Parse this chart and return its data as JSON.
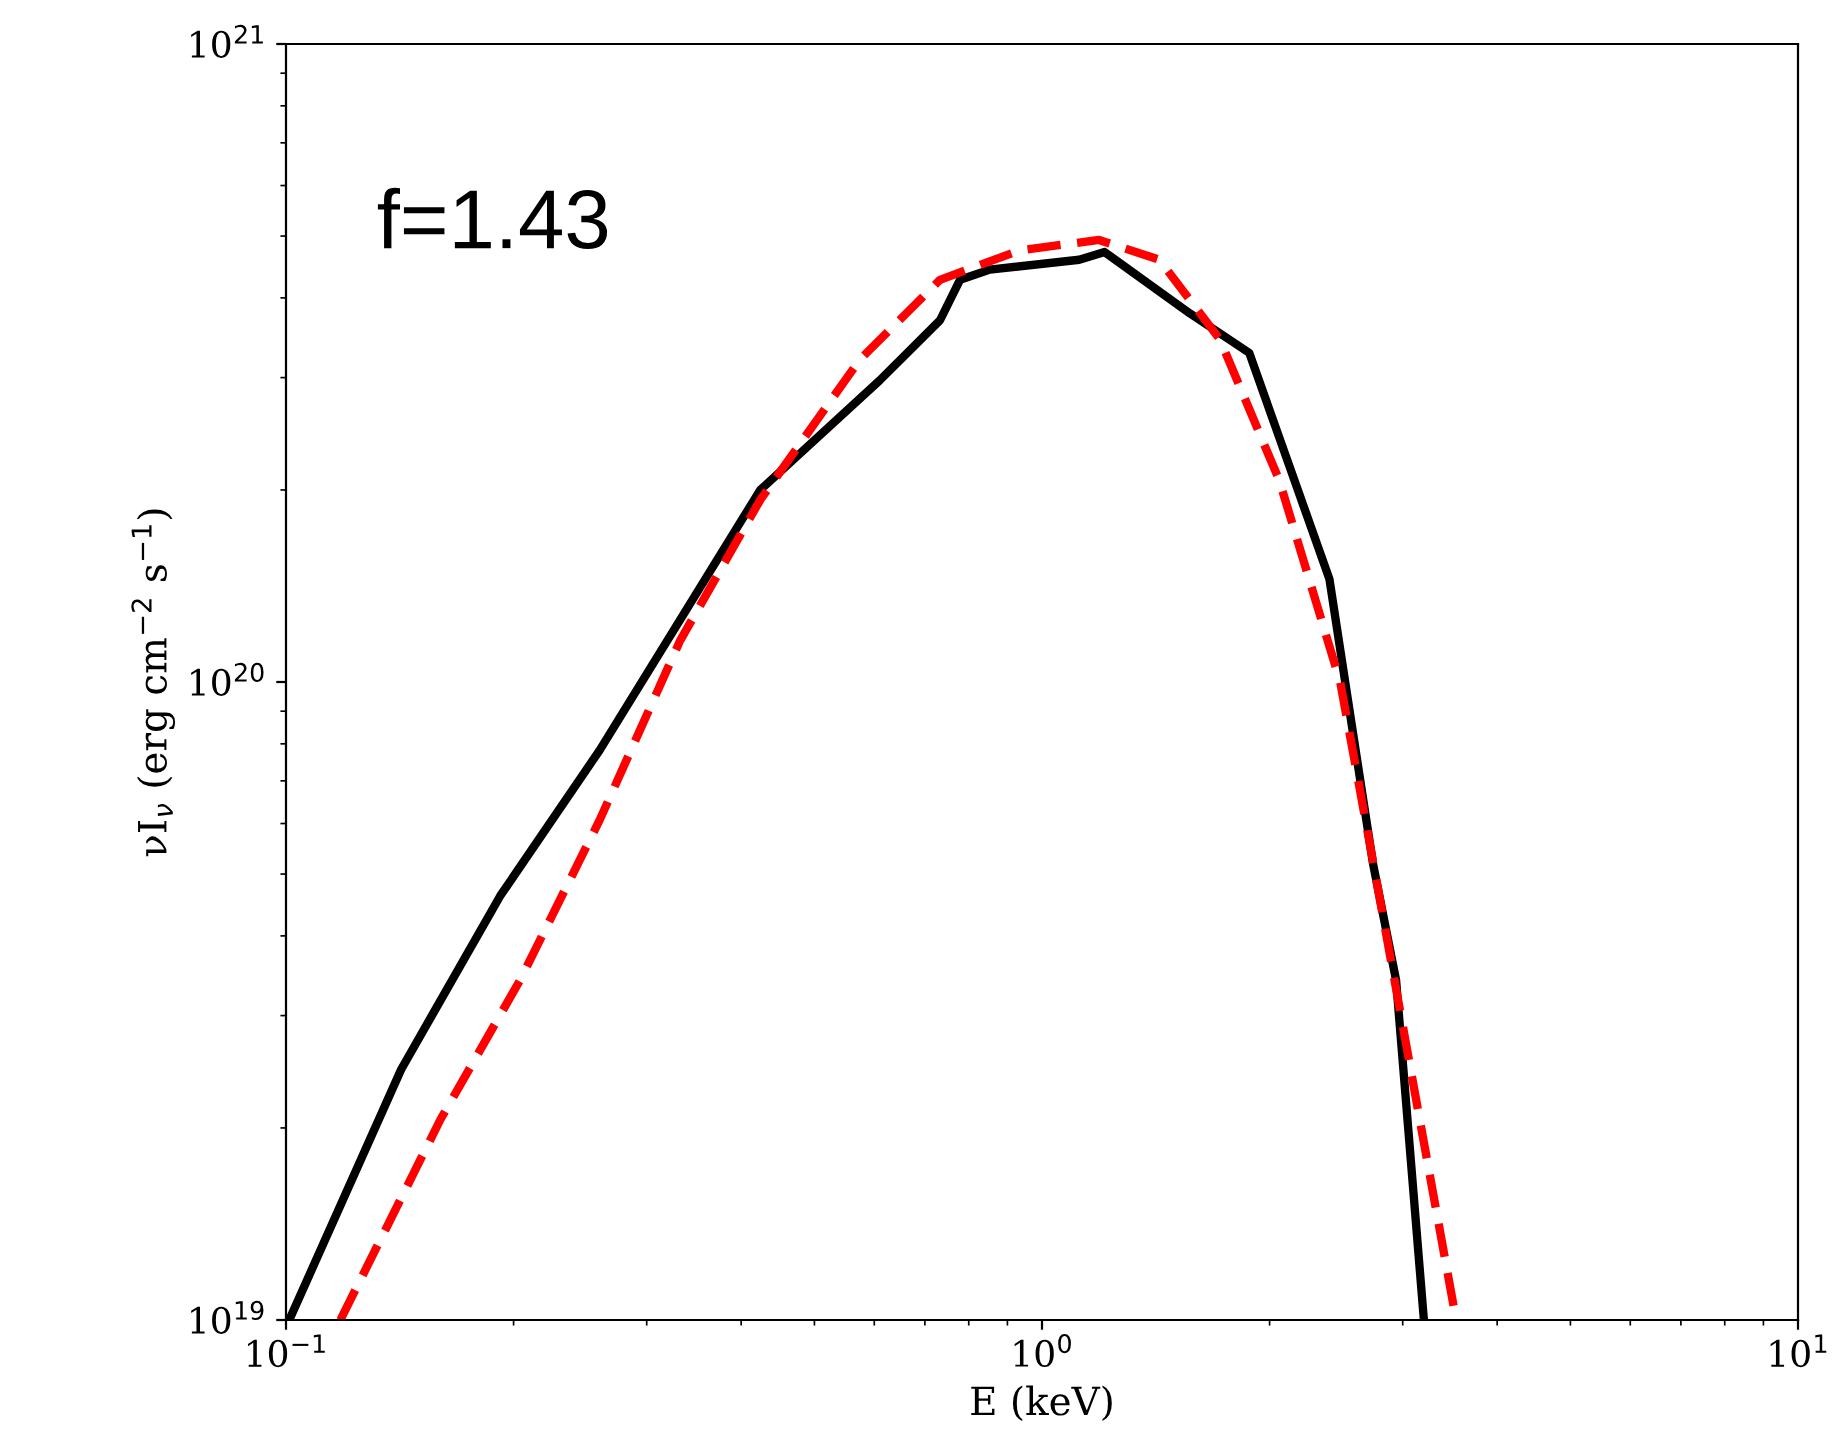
{
  "chart_data": {
    "type": "line",
    "xlabel": "E (keV)",
    "ylabel": "νI$_{ν}$ (erg cm$^{−2}$ s$^{−1}$)",
    "log": "xy",
    "grid": false,
    "legend": false,
    "xlim": [
      0.1,
      10
    ],
    "ylim": [
      1e+19,
      1e+21
    ],
    "xticks": [
      {
        "value": 0.1,
        "label": "10$^{−1}$"
      },
      {
        "value": 1,
        "label": "10$^{0}$"
      },
      {
        "value": 10,
        "label": "10$^{1}$"
      }
    ],
    "yticks": [
      {
        "value": 1e+19,
        "label": "10$^{19}$"
      },
      {
        "value": 1e+20,
        "label": "10$^{20}$"
      },
      {
        "value": 1e+21,
        "label": "10$^{21}$"
      }
    ],
    "annotations": [
      "f=1.43"
    ],
    "series": [
      {
        "color": "#000000",
        "line_style": "solid",
        "x": [
          0.101,
          0.142,
          0.192,
          0.26,
          0.424,
          0.61,
          0.733,
          0.779,
          0.853,
          1.12,
          1.21,
          1.57,
          1.88,
          2.4,
          2.74,
          2.94,
          3.2
        ],
        "values": [
          1e+19,
          2.47e+19,
          4.62e+19,
          7.82e+19,
          2e+20,
          2.97e+20,
          3.69e+20,
          4.27e+20,
          4.43e+20,
          4.59e+20,
          4.72e+20,
          3.78e+20,
          3.28e+20,
          1.45e+20,
          5.2e+19,
          3.41e+19,
          1e+19
        ]
      },
      {
        "color": "#ff0000",
        "line_style": "dashed",
        "x": [
          0.118,
          0.16,
          0.204,
          0.26,
          0.332,
          0.424,
          0.574,
          0.733,
          0.935,
          1.19,
          1.43,
          1.72,
          2.06,
          2.48,
          2.8,
          3.16,
          3.53
        ],
        "values": [
          1e+19,
          2.06e+19,
          3.41e+19,
          6.08e+19,
          1.16e+20,
          1.93e+20,
          3.2e+20,
          4.27e+20,
          4.75e+20,
          4.93e+20,
          4.59e+20,
          3.44e+20,
          2.07e+20,
          1e+20,
          4.55e+19,
          2.06e+19,
          1e+19
        ]
      }
    ]
  }
}
